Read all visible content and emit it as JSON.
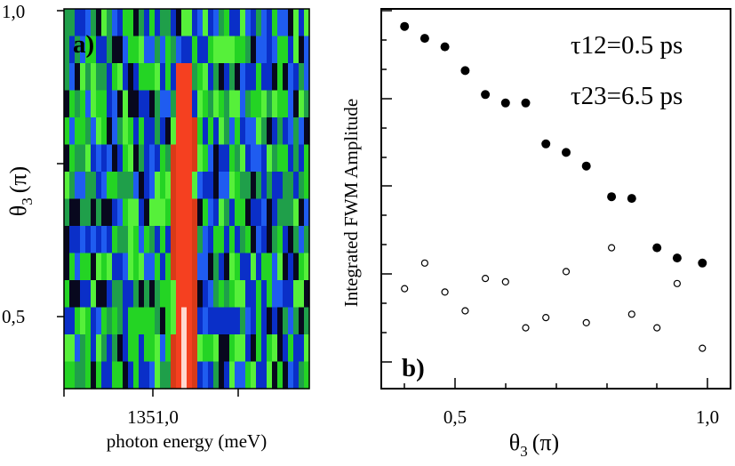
{
  "panel_a": {
    "label": "a)",
    "label_color": "#f2e84a",
    "xlabel": "photon energy (meV)",
    "ylabel_main": "θ",
    "ylabel_sub": "3",
    "ylabel_unit": "(π)",
    "y_ticks": [
      "1,0",
      "0,5"
    ],
    "x_ticks": [
      "1351,0"
    ],
    "palette": [
      "#08081e",
      "#0a2fc8",
      "#1f5cf0",
      "#1f9f4a",
      "#24d424",
      "#56f03a",
      "#d83a18",
      "#f54020",
      "#ffd8d0"
    ]
  },
  "panel_b": {
    "label": "b)",
    "ylabel": "Integrated FWM Amplitude",
    "xlabel_main": "θ",
    "xlabel_sub": "3",
    "xlabel_unit": "(π)",
    "annotations": [
      "τ12=0.5 ps",
      "τ23=6.5 ps"
    ]
  },
  "chart_data": [
    {
      "type": "heatmap",
      "panel": "a",
      "title": "",
      "xlabel": "photon energy (meV)",
      "ylabel": "θ3 (π)",
      "x_ticks": [
        "1351,0"
      ],
      "y_ticks": [
        "0,5",
        "1,0"
      ],
      "ylim": [
        0.38,
        1.0
      ],
      "description_note": "FWM spectrum vs θ3; bright red/white peak near 1351,1 meV strongest at low θ3"
    },
    {
      "type": "scatter",
      "panel": "b",
      "title": "",
      "xlabel": "θ3 (π)",
      "ylabel": "Integrated FWM Amplitude",
      "x_ticks": [
        "0,5",
        "1,0"
      ],
      "xlim": [
        0.35,
        1.05
      ],
      "ylim": [
        0,
        1
      ],
      "series": [
        {
          "name": "filled",
          "marker": "filled-circle",
          "x": [
            0.4,
            0.44,
            0.48,
            0.52,
            0.56,
            0.6,
            0.64,
            0.68,
            0.72,
            0.76,
            0.81,
            0.85,
            0.9,
            0.94,
            0.99
          ],
          "y": [
            0.98,
            0.945,
            0.92,
            0.85,
            0.78,
            0.755,
            0.755,
            0.635,
            0.61,
            0.57,
            0.48,
            0.475,
            0.33,
            0.3,
            0.285
          ]
        },
        {
          "name": "open",
          "marker": "open-circle",
          "x": [
            0.4,
            0.44,
            0.48,
            0.52,
            0.56,
            0.6,
            0.64,
            0.68,
            0.72,
            0.76,
            0.81,
            0.85,
            0.9,
            0.94,
            0.99
          ],
          "y": [
            0.21,
            0.285,
            0.2,
            0.145,
            0.24,
            0.23,
            0.095,
            0.125,
            0.26,
            0.11,
            0.33,
            0.135,
            0.095,
            0.225,
            0.035
          ]
        }
      ]
    }
  ]
}
